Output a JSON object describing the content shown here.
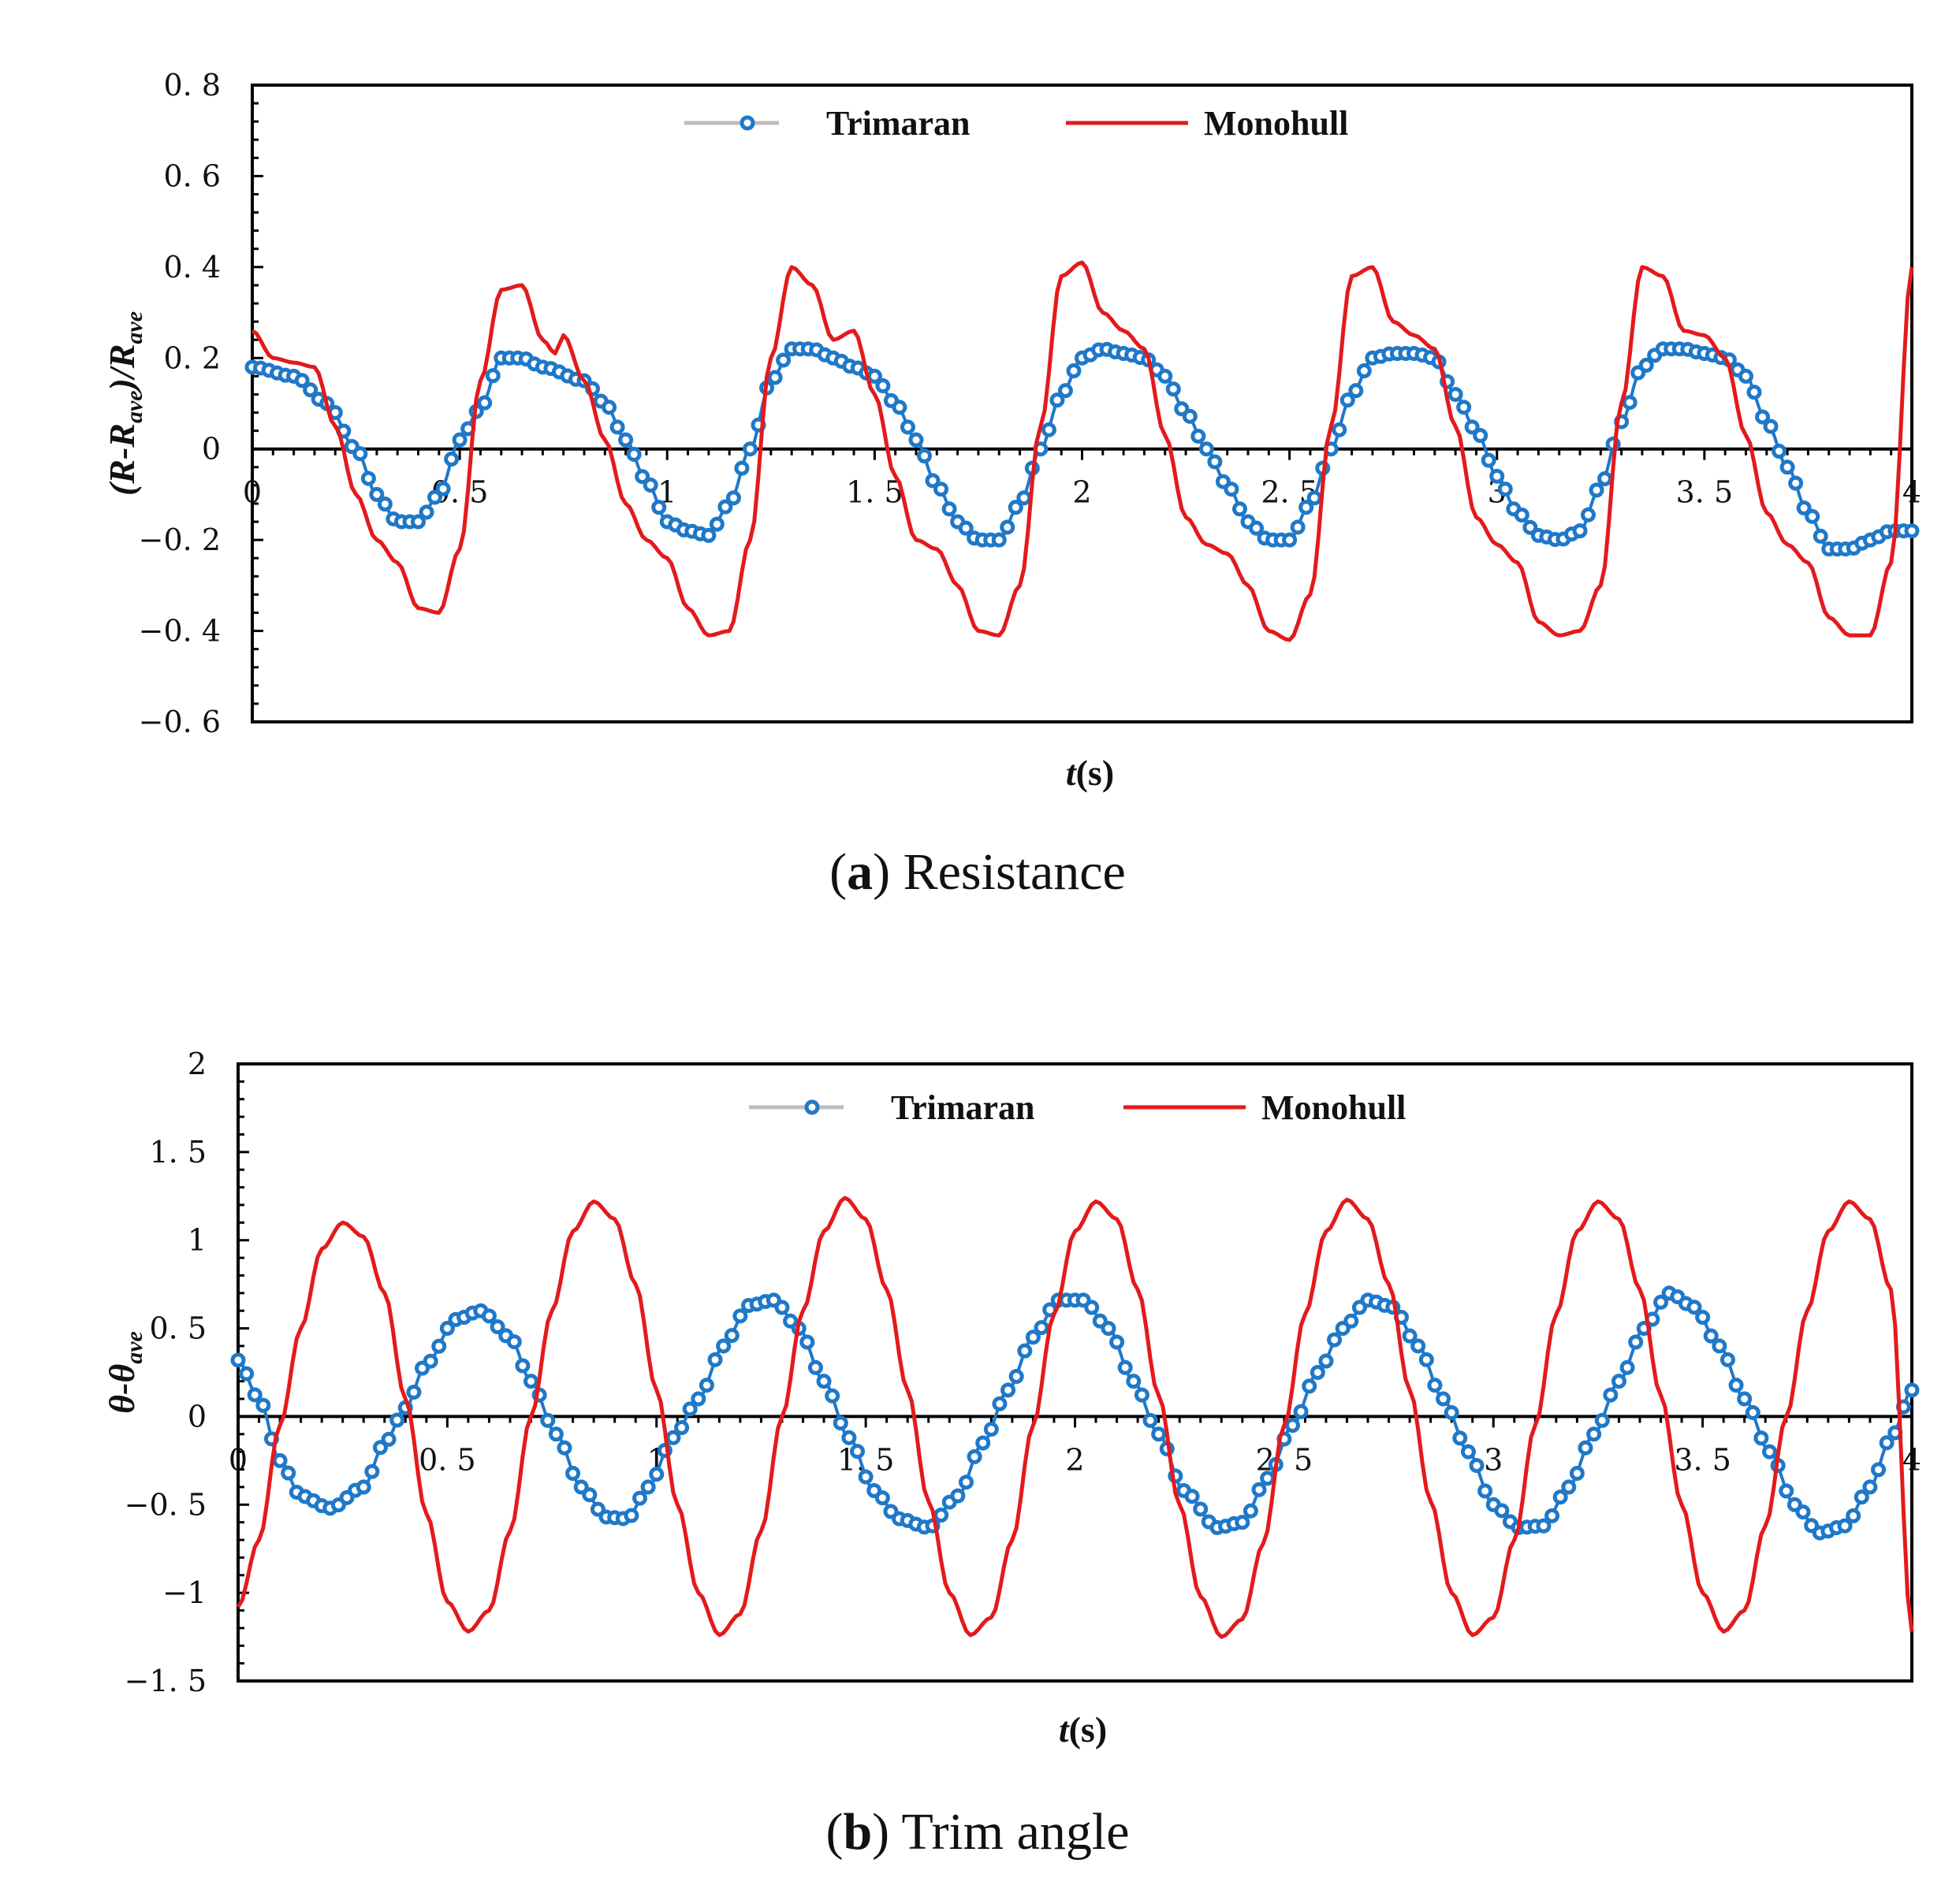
{
  "colors": {
    "trimaran": "#1f78c8",
    "monohull": "#e31a1c",
    "legend_line_trimaran": "#bdbdbd",
    "axis": "#000000"
  },
  "chart_data": [
    {
      "type": "line",
      "caption_label": "a",
      "caption_text": "Resistance",
      "xlabel_main": "t",
      "xlabel_unit": "(s)",
      "ylabel_parts": [
        "(R-R",
        "ave",
        ")/R",
        "ave"
      ],
      "xlim": [
        0,
        4
      ],
      "ylim": [
        -0.6,
        0.8
      ],
      "xticks": [
        0,
        0.5,
        1,
        1.5,
        2,
        2.5,
        3,
        3.5,
        4
      ],
      "xtick_labels": [
        "0",
        "0. 5",
        "1",
        "1. 5",
        "2",
        "2. 5",
        "3",
        "3. 5",
        "4"
      ],
      "yticks": [
        -0.6,
        -0.4,
        -0.2,
        0,
        0.2,
        0.4,
        0.6,
        0.8
      ],
      "ytick_labels": [
        "−0. 6",
        "−0. 4",
        "−0. 2",
        "0",
        "0. 2",
        "0. 4",
        "0. 6",
        "0. 8"
      ],
      "legend": [
        "Trimaran",
        "Monohull"
      ],
      "series": [
        {
          "name": "Trimaran",
          "style": "line-markers",
          "x": [
            0,
            0.1,
            0.18,
            0.25,
            0.3,
            0.35,
            0.4,
            0.45,
            0.5,
            0.55,
            0.6,
            0.65,
            0.7,
            0.8,
            0.85,
            0.9,
            0.95,
            1.0,
            1.05,
            1.1,
            1.15,
            1.2,
            1.25,
            1.3,
            1.35,
            1.4,
            1.45,
            1.5,
            1.55,
            1.6,
            1.65,
            1.7,
            1.75,
            1.8,
            1.85,
            1.9,
            1.95,
            2.0,
            2.05,
            2.1,
            2.15,
            2.2,
            2.25,
            2.3,
            2.35,
            2.4,
            2.45,
            2.5,
            2.55,
            2.6,
            2.65,
            2.7,
            2.75,
            2.8,
            2.85,
            2.9,
            2.95,
            3.0,
            3.05,
            3.1,
            3.15,
            3.2,
            3.25,
            3.3,
            3.35,
            3.4,
            3.45,
            3.5,
            3.55,
            3.6,
            3.65,
            3.7,
            3.75,
            3.8,
            3.85,
            3.9,
            3.95,
            4.0
          ],
          "y": [
            0.18,
            0.16,
            0.1,
            0.0,
            -0.1,
            -0.16,
            -0.16,
            -0.1,
            0.02,
            0.09,
            0.2,
            0.2,
            0.18,
            0.15,
            0.1,
            0.02,
            -0.07,
            -0.16,
            -0.18,
            -0.19,
            -0.12,
            0.0,
            0.15,
            0.22,
            0.22,
            0.2,
            0.18,
            0.16,
            0.1,
            0.02,
            -0.08,
            -0.16,
            -0.2,
            -0.2,
            -0.12,
            0.0,
            0.12,
            0.2,
            0.22,
            0.21,
            0.2,
            0.16,
            0.08,
            0.0,
            -0.08,
            -0.16,
            -0.2,
            -0.2,
            -0.12,
            0.0,
            0.12,
            0.2,
            0.21,
            0.21,
            0.2,
            0.12,
            0.04,
            -0.06,
            -0.14,
            -0.19,
            -0.2,
            -0.18,
            -0.08,
            0.06,
            0.18,
            0.22,
            0.22,
            0.21,
            0.2,
            0.16,
            0.06,
            -0.04,
            -0.14,
            -0.22,
            -0.22,
            -0.2,
            -0.18,
            -0.18
          ]
        },
        {
          "name": "Monohull",
          "style": "line",
          "x": [
            0,
            0.05,
            0.1,
            0.15,
            0.2,
            0.25,
            0.3,
            0.35,
            0.4,
            0.45,
            0.5,
            0.55,
            0.6,
            0.65,
            0.7,
            0.73,
            0.75,
            0.8,
            0.85,
            0.9,
            0.95,
            1.0,
            1.05,
            1.1,
            1.15,
            1.2,
            1.25,
            1.3,
            1.35,
            1.4,
            1.45,
            1.5,
            1.55,
            1.6,
            1.65,
            1.7,
            1.75,
            1.8,
            1.85,
            1.9,
            1.95,
            2.0,
            2.05,
            2.1,
            2.15,
            2.2,
            2.25,
            2.3,
            2.35,
            2.4,
            2.45,
            2.5,
            2.55,
            2.6,
            2.65,
            2.7,
            2.75,
            2.8,
            2.85,
            2.9,
            2.95,
            3.0,
            3.05,
            3.1,
            3.15,
            3.2,
            3.25,
            3.3,
            3.35,
            3.4,
            3.45,
            3.5,
            3.55,
            3.6,
            3.65,
            3.7,
            3.75,
            3.8,
            3.85,
            3.9,
            3.95,
            4.0
          ],
          "y": [
            0.26,
            0.2,
            0.19,
            0.18,
            0.05,
            -0.1,
            -0.2,
            -0.25,
            -0.35,
            -0.36,
            -0.22,
            0.15,
            0.35,
            0.36,
            0.24,
            0.21,
            0.25,
            0.15,
            0.02,
            -0.12,
            -0.2,
            -0.24,
            -0.35,
            -0.41,
            -0.4,
            -0.2,
            0.2,
            0.4,
            0.36,
            0.24,
            0.26,
            0.12,
            -0.06,
            -0.2,
            -0.22,
            -0.3,
            -0.4,
            -0.41,
            -0.3,
            0.05,
            0.38,
            0.41,
            0.3,
            0.26,
            0.22,
            0.03,
            -0.15,
            -0.21,
            -0.23,
            -0.3,
            -0.4,
            -0.42,
            -0.32,
            0.05,
            0.38,
            0.4,
            0.28,
            0.25,
            0.22,
            0.05,
            -0.15,
            -0.21,
            -0.25,
            -0.38,
            -0.41,
            -0.4,
            -0.3,
            0.1,
            0.4,
            0.38,
            0.26,
            0.25,
            0.2,
            0.03,
            -0.14,
            -0.21,
            -0.25,
            -0.37,
            -0.41,
            -0.41,
            -0.25,
            0.4
          ]
        }
      ]
    },
    {
      "type": "line",
      "caption_label": "b",
      "caption_text": "Trim angle",
      "xlabel_main": "t",
      "xlabel_unit": "(s)",
      "ylabel_parts": [
        "θ-θ",
        "ave"
      ],
      "xlim": [
        0,
        4
      ],
      "ylim": [
        -1.5,
        2
      ],
      "xticks": [
        0,
        0.5,
        1,
        1.5,
        2,
        2.5,
        3,
        3.5,
        4
      ],
      "xtick_labels": [
        "0",
        "0. 5",
        "1",
        "1. 5",
        "2",
        "2. 5",
        "3",
        "3. 5",
        "4"
      ],
      "yticks": [
        -1.5,
        -1,
        -0.5,
        0,
        0.5,
        1,
        1.5,
        2
      ],
      "ytick_labels": [
        "−1. 5",
        "−1",
        "−0. 5",
        "0",
        "0. 5",
        "1",
        "1. 5",
        "2"
      ],
      "legend": [
        "Trimaran",
        "Monohull"
      ],
      "series": [
        {
          "name": "Trimaran",
          "style": "line-markers",
          "x": [
            0,
            0.05,
            0.1,
            0.15,
            0.22,
            0.3,
            0.35,
            0.4,
            0.45,
            0.52,
            0.58,
            0.65,
            0.7,
            0.76,
            0.82,
            0.88,
            0.93,
            0.98,
            1.04,
            1.1,
            1.16,
            1.22,
            1.28,
            1.34,
            1.4,
            1.46,
            1.52,
            1.58,
            1.65,
            1.72,
            1.78,
            1.84,
            1.9,
            1.96,
            2.02,
            2.08,
            2.14,
            2.2,
            2.26,
            2.34,
            2.4,
            2.46,
            2.52,
            2.58,
            2.64,
            2.7,
            2.76,
            2.82,
            2.88,
            2.94,
            3.0,
            3.06,
            3.12,
            3.18,
            3.24,
            3.3,
            3.36,
            3.42,
            3.48,
            3.54,
            3.6,
            3.66,
            3.72,
            3.78,
            3.84,
            3.9,
            3.95,
            4.0
          ],
          "y": [
            0.32,
            0.1,
            -0.25,
            -0.45,
            -0.52,
            -0.4,
            -0.15,
            0.05,
            0.3,
            0.55,
            0.6,
            0.45,
            0.2,
            -0.1,
            -0.4,
            -0.57,
            -0.58,
            -0.4,
            -0.12,
            0.1,
            0.4,
            0.63,
            0.66,
            0.5,
            0.2,
            -0.12,
            -0.42,
            -0.58,
            -0.63,
            -0.45,
            -0.15,
            0.15,
            0.45,
            0.66,
            0.66,
            0.5,
            0.2,
            -0.1,
            -0.42,
            -0.63,
            -0.6,
            -0.35,
            -0.05,
            0.25,
            0.5,
            0.66,
            0.62,
            0.4,
            0.1,
            -0.2,
            -0.5,
            -0.63,
            -0.62,
            -0.4,
            -0.1,
            0.2,
            0.5,
            0.7,
            0.62,
            0.4,
            0.1,
            -0.2,
            -0.5,
            -0.66,
            -0.62,
            -0.4,
            -0.12,
            0.15
          ]
        },
        {
          "name": "Monohull",
          "style": "line",
          "x": [
            0,
            0.05,
            0.1,
            0.15,
            0.2,
            0.25,
            0.3,
            0.35,
            0.4,
            0.45,
            0.5,
            0.55,
            0.6,
            0.65,
            0.7,
            0.75,
            0.8,
            0.85,
            0.9,
            0.95,
            1.0,
            1.05,
            1.1,
            1.15,
            1.2,
            1.25,
            1.3,
            1.35,
            1.4,
            1.45,
            1.5,
            1.55,
            1.6,
            1.65,
            1.7,
            1.75,
            1.8,
            1.85,
            1.9,
            1.95,
            2.0,
            2.05,
            2.1,
            2.15,
            2.2,
            2.25,
            2.3,
            2.35,
            2.4,
            2.45,
            2.5,
            2.55,
            2.6,
            2.65,
            2.7,
            2.75,
            2.8,
            2.85,
            2.9,
            2.95,
            3.0,
            3.05,
            3.1,
            3.15,
            3.2,
            3.25,
            3.3,
            3.35,
            3.4,
            3.45,
            3.5,
            3.55,
            3.6,
            3.65,
            3.7,
            3.75,
            3.8,
            3.85,
            3.9,
            3.95,
            4.0
          ],
          "y": [
            -1.08,
            -0.7,
            -0.05,
            0.5,
            0.95,
            1.1,
            1.02,
            0.7,
            0.1,
            -0.55,
            -1.05,
            -1.22,
            -1.1,
            -0.65,
            0.0,
            0.6,
            1.05,
            1.22,
            1.12,
            0.75,
            0.15,
            -0.5,
            -1.0,
            -1.24,
            -1.12,
            -0.65,
            0.0,
            0.6,
            1.05,
            1.24,
            1.12,
            0.72,
            0.15,
            -0.48,
            -1.0,
            -1.24,
            -1.14,
            -0.7,
            -0.05,
            0.58,
            1.05,
            1.22,
            1.12,
            0.72,
            0.12,
            -0.5,
            -1.02,
            -1.25,
            -1.15,
            -0.72,
            -0.05,
            0.58,
            1.05,
            1.23,
            1.12,
            0.75,
            0.15,
            -0.48,
            -1.0,
            -1.24,
            -1.14,
            -0.7,
            -0.05,
            0.58,
            1.05,
            1.22,
            1.12,
            0.72,
            0.12,
            -0.5,
            -1.0,
            -1.22,
            -1.1,
            -0.62,
            0.0,
            0.6,
            1.05,
            1.22,
            1.12,
            0.72,
            -1.22
          ]
        }
      ]
    }
  ]
}
